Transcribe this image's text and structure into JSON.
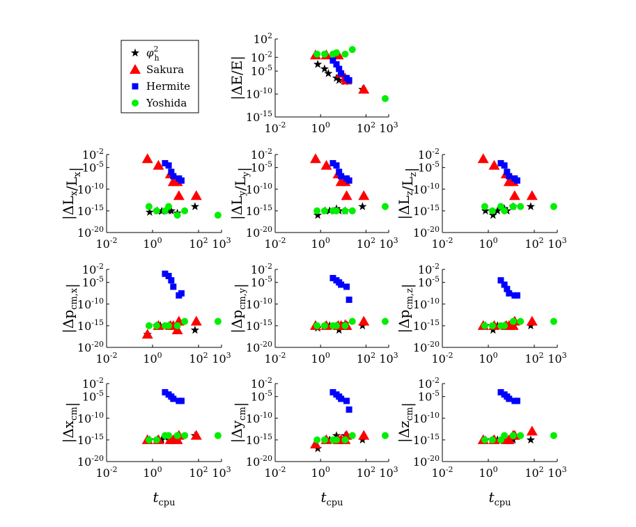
{
  "series_styles": [
    {
      "name": "φ_h^2",
      "color": "#000000",
      "marker": "star"
    },
    {
      "name": "Sakura",
      "color": "#ff0000",
      "marker": "triangle"
    },
    {
      "name": "Hermite",
      "color": "#0000ff",
      "marker": "square"
    },
    {
      "name": "Yoshida",
      "color": "#00ee00",
      "marker": "circle"
    }
  ],
  "legend": {
    "entries": [
      "φ",
      "Sakura",
      "Hermite",
      "Yoshida"
    ],
    "phi_sub": "h",
    "phi_sup": "2",
    "placement": "top-left"
  },
  "axes_labels": {
    "xlabel_main": "t",
    "xlabel_sub": "cpu",
    "xticks": [
      {
        "base": "10",
        "exp": "-2"
      },
      {
        "base": "10",
        "exp": "0"
      },
      {
        "base": "10",
        "exp": "2"
      },
      {
        "base": "10",
        "exp": "3"
      }
    ],
    "yticks_E": [
      {
        "base": "10",
        "exp": "2"
      },
      {
        "base": "10",
        "exp": "-2"
      },
      {
        "base": "10",
        "exp": "-5"
      },
      {
        "base": "10",
        "exp": "-10"
      },
      {
        "base": "10",
        "exp": "-15"
      }
    ],
    "yticks_other": [
      {
        "base": "10",
        "exp": "-2"
      },
      {
        "base": "10",
        "exp": "-5"
      },
      {
        "base": "10",
        "exp": "-10"
      },
      {
        "base": "10",
        "exp": "-15"
      },
      {
        "base": "10",
        "exp": "-20"
      }
    ]
  },
  "chart_data": [
    {
      "type": "scatter",
      "ylabel": "|ΔE/E|",
      "xscale": "log",
      "yscale": "log",
      "xlim": [
        0.01,
        1000
      ],
      "ylim": [
        1e-15,
        100
      ],
      "grid": false,
      "series": [
        {
          "name": "φ_h^2",
          "x": [
            0.75,
            1.5,
            2.2,
            5,
            6.5,
            12,
            70
          ],
          "y": [
            0.0003,
            3e-05,
            3e-06,
            3e-07,
            1e-07,
            5e-08,
            1e-09
          ]
        },
        {
          "name": "Sakura",
          "x": [
            0.6,
            1.8,
            6,
            8,
            12,
            14,
            80
          ],
          "y": [
            0.03,
            0.03,
            0.03,
            3e-06,
            3e-07,
            1e-07,
            1e-09
          ]
        },
        {
          "name": "Hermite",
          "x": [
            3.5,
            5,
            6.5,
            8,
            14,
            18
          ],
          "y": [
            0.002,
            0.0003,
            3e-05,
            3e-06,
            3e-07,
            1e-07
          ]
        },
        {
          "name": "Yoshida",
          "x": [
            0.7,
            1.5,
            3.5,
            5,
            12,
            25,
            700
          ],
          "y": [
            0.05,
            0.05,
            0.05,
            0.1,
            0.05,
            0.5,
            1e-11
          ]
        }
      ]
    },
    {
      "type": "scatter",
      "ylabel": "|ΔL_x/L_x|",
      "xscale": "log",
      "yscale": "log",
      "xlim": [
        0.01,
        1000
      ],
      "ylim": [
        1e-20,
        0.01
      ],
      "grid": false,
      "series": [
        {
          "name": "φ_h^2",
          "x": [
            0.75,
            1.6,
            2.5,
            5,
            6.5,
            12,
            70
          ],
          "y": [
            5e-16,
            1e-15,
            8e-16,
            1e-15,
            1e-15,
            3e-16,
            1e-14
          ]
        },
        {
          "name": "Sakura",
          "x": [
            0.6,
            1.8,
            6,
            8,
            12,
            14,
            80
          ],
          "y": [
            0.001,
            3e-05,
            3e-07,
            5e-09,
            5e-09,
            3e-12,
            3e-12
          ]
        },
        {
          "name": "Hermite",
          "x": [
            3.5,
            5,
            6.5,
            8,
            14,
            18
          ],
          "y": [
            0.0001,
            3e-05,
            1e-06,
            1e-07,
            3e-08,
            1e-08
          ]
        },
        {
          "name": "Yoshida",
          "x": [
            0.7,
            1.5,
            3.5,
            5,
            12,
            25,
            700
          ],
          "y": [
            1e-14,
            1e-15,
            1e-15,
            1e-14,
            1e-16,
            1e-15,
            1e-16
          ]
        }
      ]
    },
    {
      "type": "scatter",
      "ylabel": "|ΔL_y/L_y|",
      "xscale": "log",
      "yscale": "log",
      "xlim": [
        0.01,
        1000
      ],
      "ylim": [
        1e-20,
        0.01
      ],
      "grid": false,
      "series": [
        {
          "name": "φ_h^2",
          "x": [
            0.75,
            1.6,
            2.5,
            5,
            6.5,
            12,
            70
          ],
          "y": [
            1e-16,
            1e-15,
            1e-15,
            3e-15,
            1e-15,
            1e-15,
            1e-14
          ]
        },
        {
          "name": "Sakura",
          "x": [
            0.6,
            1.8,
            6,
            8,
            12,
            14,
            80
          ],
          "y": [
            0.001,
            3e-05,
            3e-07,
            5e-09,
            5e-09,
            3e-12,
            3e-12
          ]
        },
        {
          "name": "Hermite",
          "x": [
            3.5,
            5,
            6.5,
            8,
            14,
            18
          ],
          "y": [
            0.0001,
            3e-05,
            1e-06,
            1e-07,
            3e-08,
            1e-08
          ]
        },
        {
          "name": "Yoshida",
          "x": [
            0.7,
            1.5,
            3.5,
            5,
            12,
            25,
            700
          ],
          "y": [
            1e-15,
            1e-15,
            1e-15,
            1e-15,
            1e-15,
            1e-15,
            1e-14
          ]
        }
      ]
    },
    {
      "type": "scatter",
      "ylabel": "|ΔL_z/L_z|",
      "xscale": "log",
      "yscale": "log",
      "xlim": [
        0.01,
        1000
      ],
      "ylim": [
        1e-20,
        0.01
      ],
      "grid": false,
      "series": [
        {
          "name": "φ_h^2",
          "x": [
            0.75,
            1.6,
            2.5,
            5,
            6.5,
            12,
            70
          ],
          "y": [
            1e-15,
            1e-16,
            1e-15,
            3e-15,
            1e-15,
            1e-14,
            1e-14
          ]
        },
        {
          "name": "Sakura",
          "x": [
            0.6,
            1.8,
            6,
            8,
            12,
            14,
            80
          ],
          "y": [
            0.001,
            3e-05,
            3e-07,
            5e-09,
            5e-09,
            3e-12,
            3e-12
          ]
        },
        {
          "name": "Hermite",
          "x": [
            3.5,
            5,
            6.5,
            8,
            14,
            18
          ],
          "y": [
            0.0001,
            3e-05,
            1e-06,
            1e-07,
            3e-08,
            1e-08
          ]
        },
        {
          "name": "Yoshida",
          "x": [
            0.7,
            1.5,
            3.5,
            5,
            12,
            25,
            700
          ],
          "y": [
            1e-14,
            1e-15,
            1e-14,
            1e-15,
            1e-14,
            1e-14,
            1e-14
          ]
        }
      ]
    },
    {
      "type": "scatter",
      "ylabel": "|Δp_cm,x|",
      "xscale": "log",
      "yscale": "log",
      "xlim": [
        0.01,
        1000
      ],
      "ylim": [
        1e-20,
        0.01
      ],
      "grid": false,
      "series": [
        {
          "name": "φ_h^2",
          "x": [
            0.6,
            1.5,
            2.2,
            5,
            6.5,
            12,
            70
          ],
          "y": [
            1e-17,
            1e-15,
            1e-15,
            1e-15,
            1e-15,
            1e-15,
            1e-16
          ]
        },
        {
          "name": "Sakura",
          "x": [
            0.6,
            1.8,
            6,
            8,
            12,
            14,
            80
          ],
          "y": [
            1e-17,
            1e-15,
            1e-15,
            1e-15,
            1e-16,
            1e-14,
            1e-14
          ]
        },
        {
          "name": "Hermite",
          "x": [
            3.5,
            5,
            6.5,
            8,
            14,
            18
          ],
          "y": [
            0.001,
            0.0003,
            3e-05,
            1e-06,
            1e-08,
            3e-08
          ]
        },
        {
          "name": "Yoshida",
          "x": [
            0.7,
            1.5,
            3.5,
            5,
            12,
            25,
            700
          ],
          "y": [
            1e-15,
            1e-15,
            1e-15,
            1e-15,
            1e-15,
            1e-14,
            1e-14
          ]
        }
      ]
    },
    {
      "type": "scatter",
      "ylabel": "|Δp_cm,y|",
      "xscale": "log",
      "yscale": "log",
      "xlim": [
        0.01,
        1000
      ],
      "ylim": [
        1e-20,
        0.01
      ],
      "grid": false,
      "series": [
        {
          "name": "φ_h^2",
          "x": [
            0.75,
            1.6,
            2.5,
            5,
            6.5,
            12,
            70
          ],
          "y": [
            3e-16,
            1e-15,
            1e-15,
            1e-15,
            1e-16,
            3e-15,
            1e-15
          ]
        },
        {
          "name": "Sakura",
          "x": [
            0.6,
            1.8,
            6,
            8,
            12,
            14,
            80
          ],
          "y": [
            1e-15,
            1e-15,
            1e-15,
            1e-15,
            1e-15,
            1e-15,
            1e-14
          ]
        },
        {
          "name": "Hermite",
          "x": [
            3.5,
            5,
            6.5,
            8,
            14,
            18
          ],
          "y": [
            0.0001,
            3e-05,
            1e-05,
            3e-06,
            1e-06,
            1e-09
          ]
        },
        {
          "name": "Yoshida",
          "x": [
            0.7,
            1.5,
            3.5,
            5,
            12,
            25,
            700
          ],
          "y": [
            1e-15,
            1e-15,
            1e-15,
            1e-15,
            1e-15,
            1e-14,
            1e-14
          ]
        }
      ]
    },
    {
      "type": "scatter",
      "ylabel": "|Δp_cm,z|",
      "xscale": "log",
      "yscale": "log",
      "xlim": [
        0.01,
        1000
      ],
      "ylim": [
        1e-20,
        0.01
      ],
      "grid": false,
      "series": [
        {
          "name": "φ_h^2",
          "x": [
            0.75,
            1.6,
            2.5,
            5,
            6.5,
            12,
            70
          ],
          "y": [
            1e-15,
            1e-16,
            1e-15,
            1e-15,
            1e-15,
            1e-15,
            1e-15
          ]
        },
        {
          "name": "Sakura",
          "x": [
            0.6,
            1.8,
            6,
            8,
            12,
            14,
            80
          ],
          "y": [
            1e-15,
            1e-15,
            1e-15,
            1e-15,
            1e-15,
            1e-14,
            1e-14
          ]
        },
        {
          "name": "Hermite",
          "x": [
            3.5,
            5,
            6.5,
            8,
            14,
            18
          ],
          "y": [
            3e-05,
            3e-06,
            3e-07,
            3e-08,
            1e-08,
            1e-08
          ]
        },
        {
          "name": "Yoshida",
          "x": [
            0.7,
            1.5,
            3.5,
            5,
            12,
            25,
            700
          ],
          "y": [
            1e-15,
            1e-15,
            1e-15,
            1e-15,
            1e-14,
            1e-14,
            1e-14
          ]
        }
      ]
    },
    {
      "type": "scatter",
      "ylabel": "|Δx_cm|",
      "xscale": "log",
      "yscale": "log",
      "xlim": [
        0.01,
        1000
      ],
      "ylim": [
        1e-20,
        0.01
      ],
      "grid": false,
      "series": [
        {
          "name": "φ_h^2",
          "x": [
            0.75,
            1.6,
            2.5,
            5,
            6.5,
            12,
            70
          ],
          "y": [
            1e-15,
            1e-15,
            1e-15,
            1e-15,
            1e-15,
            1e-15,
            1e-14
          ]
        },
        {
          "name": "Sakura",
          "x": [
            0.6,
            1.8,
            6,
            8,
            12,
            14,
            80
          ],
          "y": [
            1e-15,
            1e-15,
            1e-15,
            1e-15,
            1e-15,
            1e-14,
            1e-14
          ]
        },
        {
          "name": "Hermite",
          "x": [
            3.5,
            5,
            6.5,
            8,
            14,
            18
          ],
          "y": [
            0.0001,
            3e-05,
            1e-05,
            3e-06,
            1e-06,
            1e-06
          ]
        },
        {
          "name": "Yoshida",
          "x": [
            0.7,
            1.5,
            3.5,
            5,
            12,
            25,
            700
          ],
          "y": [
            1e-15,
            1e-15,
            1e-14,
            1e-14,
            1e-14,
            1e-14,
            1e-14
          ]
        }
      ]
    },
    {
      "type": "scatter",
      "ylabel": "|Δy_cm|",
      "xscale": "log",
      "yscale": "log",
      "xlim": [
        0.01,
        1000
      ],
      "ylim": [
        1e-20,
        0.01
      ],
      "grid": false,
      "series": [
        {
          "name": "φ_h^2",
          "x": [
            0.75,
            1.6,
            2.5,
            5,
            6.5,
            12,
            70
          ],
          "y": [
            1e-17,
            1e-15,
            1e-15,
            1e-14,
            1e-15,
            1e-14,
            1e-15
          ]
        },
        {
          "name": "Sakura",
          "x": [
            0.6,
            1.8,
            6,
            8,
            12,
            14,
            80
          ],
          "y": [
            1e-16,
            1e-15,
            1e-15,
            1e-15,
            1e-15,
            1e-14,
            1e-14
          ]
        },
        {
          "name": "Hermite",
          "x": [
            3.5,
            5,
            6.5,
            8,
            14,
            18
          ],
          "y": [
            0.0001,
            3e-05,
            1e-05,
            3e-06,
            1e-06,
            1e-08
          ]
        },
        {
          "name": "Yoshida",
          "x": [
            0.7,
            1.5,
            3.5,
            5,
            12,
            25,
            700
          ],
          "y": [
            1e-15,
            1e-15,
            1e-15,
            1e-15,
            1e-15,
            1e-14,
            1e-14
          ]
        }
      ]
    },
    {
      "type": "scatter",
      "ylabel": "|Δz_cm|",
      "xscale": "log",
      "yscale": "log",
      "xlim": [
        0.01,
        1000
      ],
      "ylim": [
        1e-20,
        0.01
      ],
      "grid": false,
      "series": [
        {
          "name": "φ_h^2",
          "x": [
            0.75,
            1.6,
            2.5,
            5,
            6.5,
            12,
            70
          ],
          "y": [
            1e-15,
            1e-15,
            1e-15,
            1e-15,
            1e-15,
            1e-15,
            1e-15
          ]
        },
        {
          "name": "Sakura",
          "x": [
            0.6,
            1.8,
            6,
            8,
            12,
            14,
            80
          ],
          "y": [
            1e-15,
            1e-15,
            1e-15,
            1e-15,
            1e-14,
            1e-14,
            1e-13
          ]
        },
        {
          "name": "Hermite",
          "x": [
            3.5,
            5,
            6.5,
            8,
            14,
            18
          ],
          "y": [
            0.0001,
            3e-05,
            1e-05,
            3e-06,
            1e-06,
            1e-06
          ]
        },
        {
          "name": "Yoshida",
          "x": [
            0.7,
            1.5,
            3.5,
            5,
            12,
            25,
            700
          ],
          "y": [
            1e-15,
            1e-15,
            1e-15,
            1e-14,
            1e-14,
            1e-14,
            1e-14
          ]
        }
      ]
    }
  ]
}
